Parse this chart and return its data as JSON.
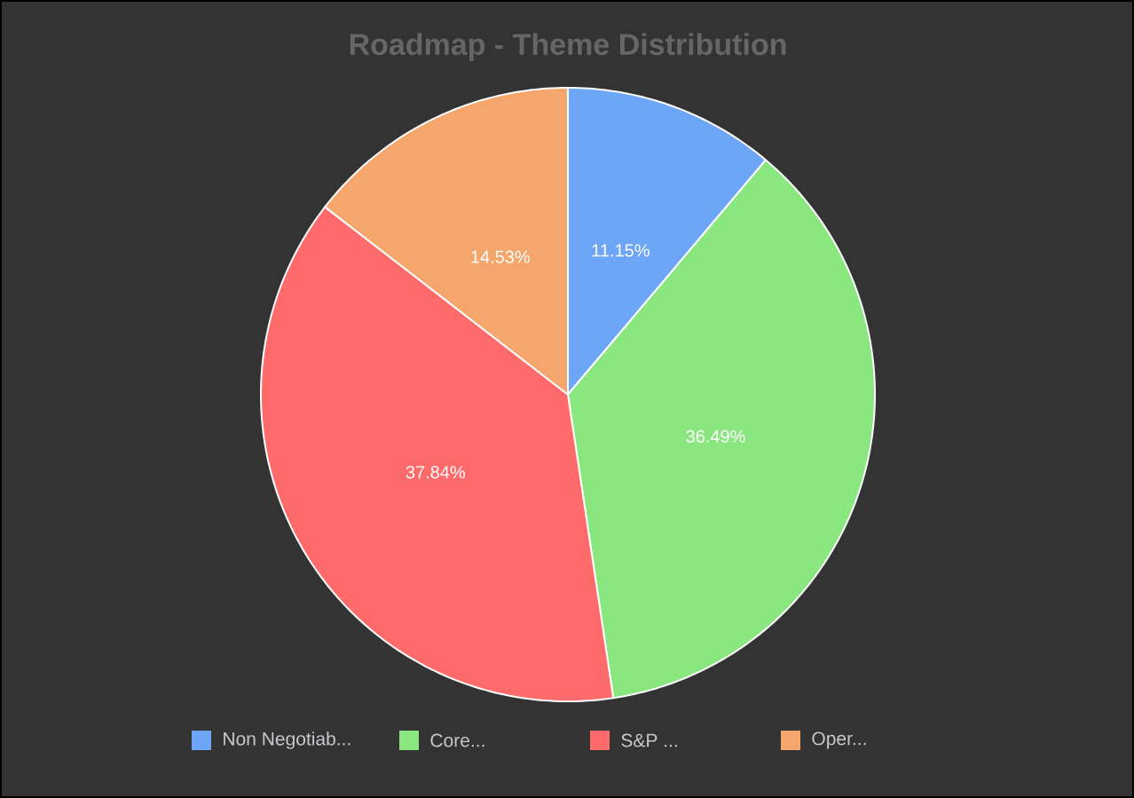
{
  "chart_data": {
    "type": "pie",
    "title": "Roadmap - Theme Distribution",
    "categories": [
      "Non Negotiab...",
      "Core...",
      "S&P ...",
      "Oper..."
    ],
    "values": [
      11.15,
      36.49,
      37.84,
      14.53
    ],
    "colors": [
      "#6ea6f7",
      "#8ae67f",
      "#ff6b6b",
      "#f5a66d"
    ],
    "value_labels": [
      "11.15%",
      "36.49%",
      "37.84%",
      "14.53%"
    ],
    "legend": "bottom"
  }
}
